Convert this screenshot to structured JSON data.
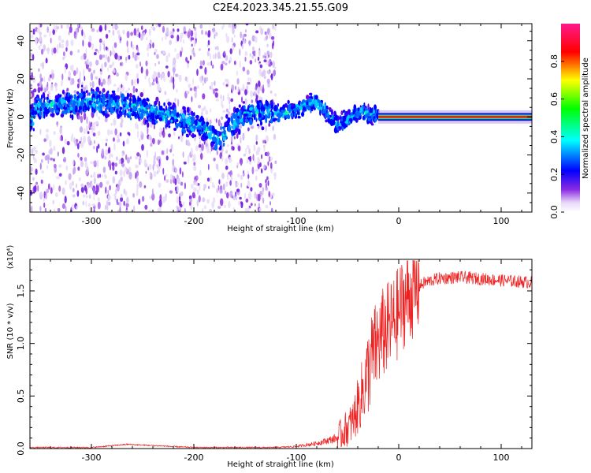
{
  "title": "C2E4.2023.345.21.55.G09",
  "chart_data": [
    {
      "type": "heatmap",
      "name": "spectrogram",
      "xlabel": "Height of straight line (km)",
      "ylabel": "Frequency (Hz)",
      "xlim": [
        -360,
        130
      ],
      "ylim": [
        -50,
        49
      ],
      "xticks": [
        -300,
        -200,
        -100,
        0,
        100
      ],
      "yticks": [
        -40,
        -20,
        0,
        20,
        40
      ],
      "colorbar": {
        "label": "Normalized spectral amplitude",
        "range": [
          0.0,
          1.0
        ],
        "ticks": [
          0.0,
          0.2,
          0.4,
          0.6,
          0.8
        ],
        "colormap": [
          "#ffffff",
          "#8a2be2",
          "#0000ff",
          "#00ffff",
          "#00ff00",
          "#ffff00",
          "#ff0000",
          "#ff0080"
        ]
      },
      "features": {
        "scatter_extent_km": [
          -360,
          -120
        ],
        "ridge_freq_hz": [
          {
            "x": -355,
            "f": 5
          },
          {
            "x": -300,
            "f": 8
          },
          {
            "x": -260,
            "f": 5
          },
          {
            "x": -220,
            "f": 0
          },
          {
            "x": -190,
            "f": -6
          },
          {
            "x": -175,
            "f": -12
          },
          {
            "x": -150,
            "f": 2
          },
          {
            "x": -110,
            "f": 2
          },
          {
            "x": -80,
            "f": 8
          },
          {
            "x": -60,
            "f": -4
          },
          {
            "x": -40,
            "f": 2
          },
          {
            "x": -20,
            "f": 1
          },
          {
            "x": 0,
            "f": 0
          },
          {
            "x": 130,
            "f": 0
          }
        ],
        "carrier_line_freq_hz": 0,
        "carrier_line_range_km": [
          -20,
          130
        ]
      }
    },
    {
      "type": "line",
      "name": "snr",
      "xlabel": "Height of straight line (km)",
      "ylabel": "SNR (10 * v/v)",
      "scale_label": "(x10⁴)",
      "xlim": [
        -360,
        130
      ],
      "ylim": [
        0,
        1.8
      ],
      "xticks": [
        -300,
        -200,
        -100,
        0,
        100
      ],
      "yticks": [
        0.0,
        0.5,
        1.0,
        1.5
      ],
      "ytick_labels": [
        "0.0",
        "0.5",
        "1.0",
        "1.5"
      ],
      "color": "#ff0000",
      "envelope": {
        "x": [
          -360,
          -300,
          -265,
          -200,
          -120,
          -100,
          -80,
          -60,
          -45,
          -35,
          -25,
          -15,
          -5,
          5,
          15,
          25,
          40,
          60,
          100,
          130
        ],
        "y": [
          0.01,
          0.01,
          0.04,
          0.01,
          0.01,
          0.02,
          0.05,
          0.1,
          0.25,
          0.55,
          0.9,
          1.1,
          1.2,
          1.4,
          1.5,
          1.58,
          1.62,
          1.63,
          1.6,
          1.58
        ]
      }
    }
  ]
}
